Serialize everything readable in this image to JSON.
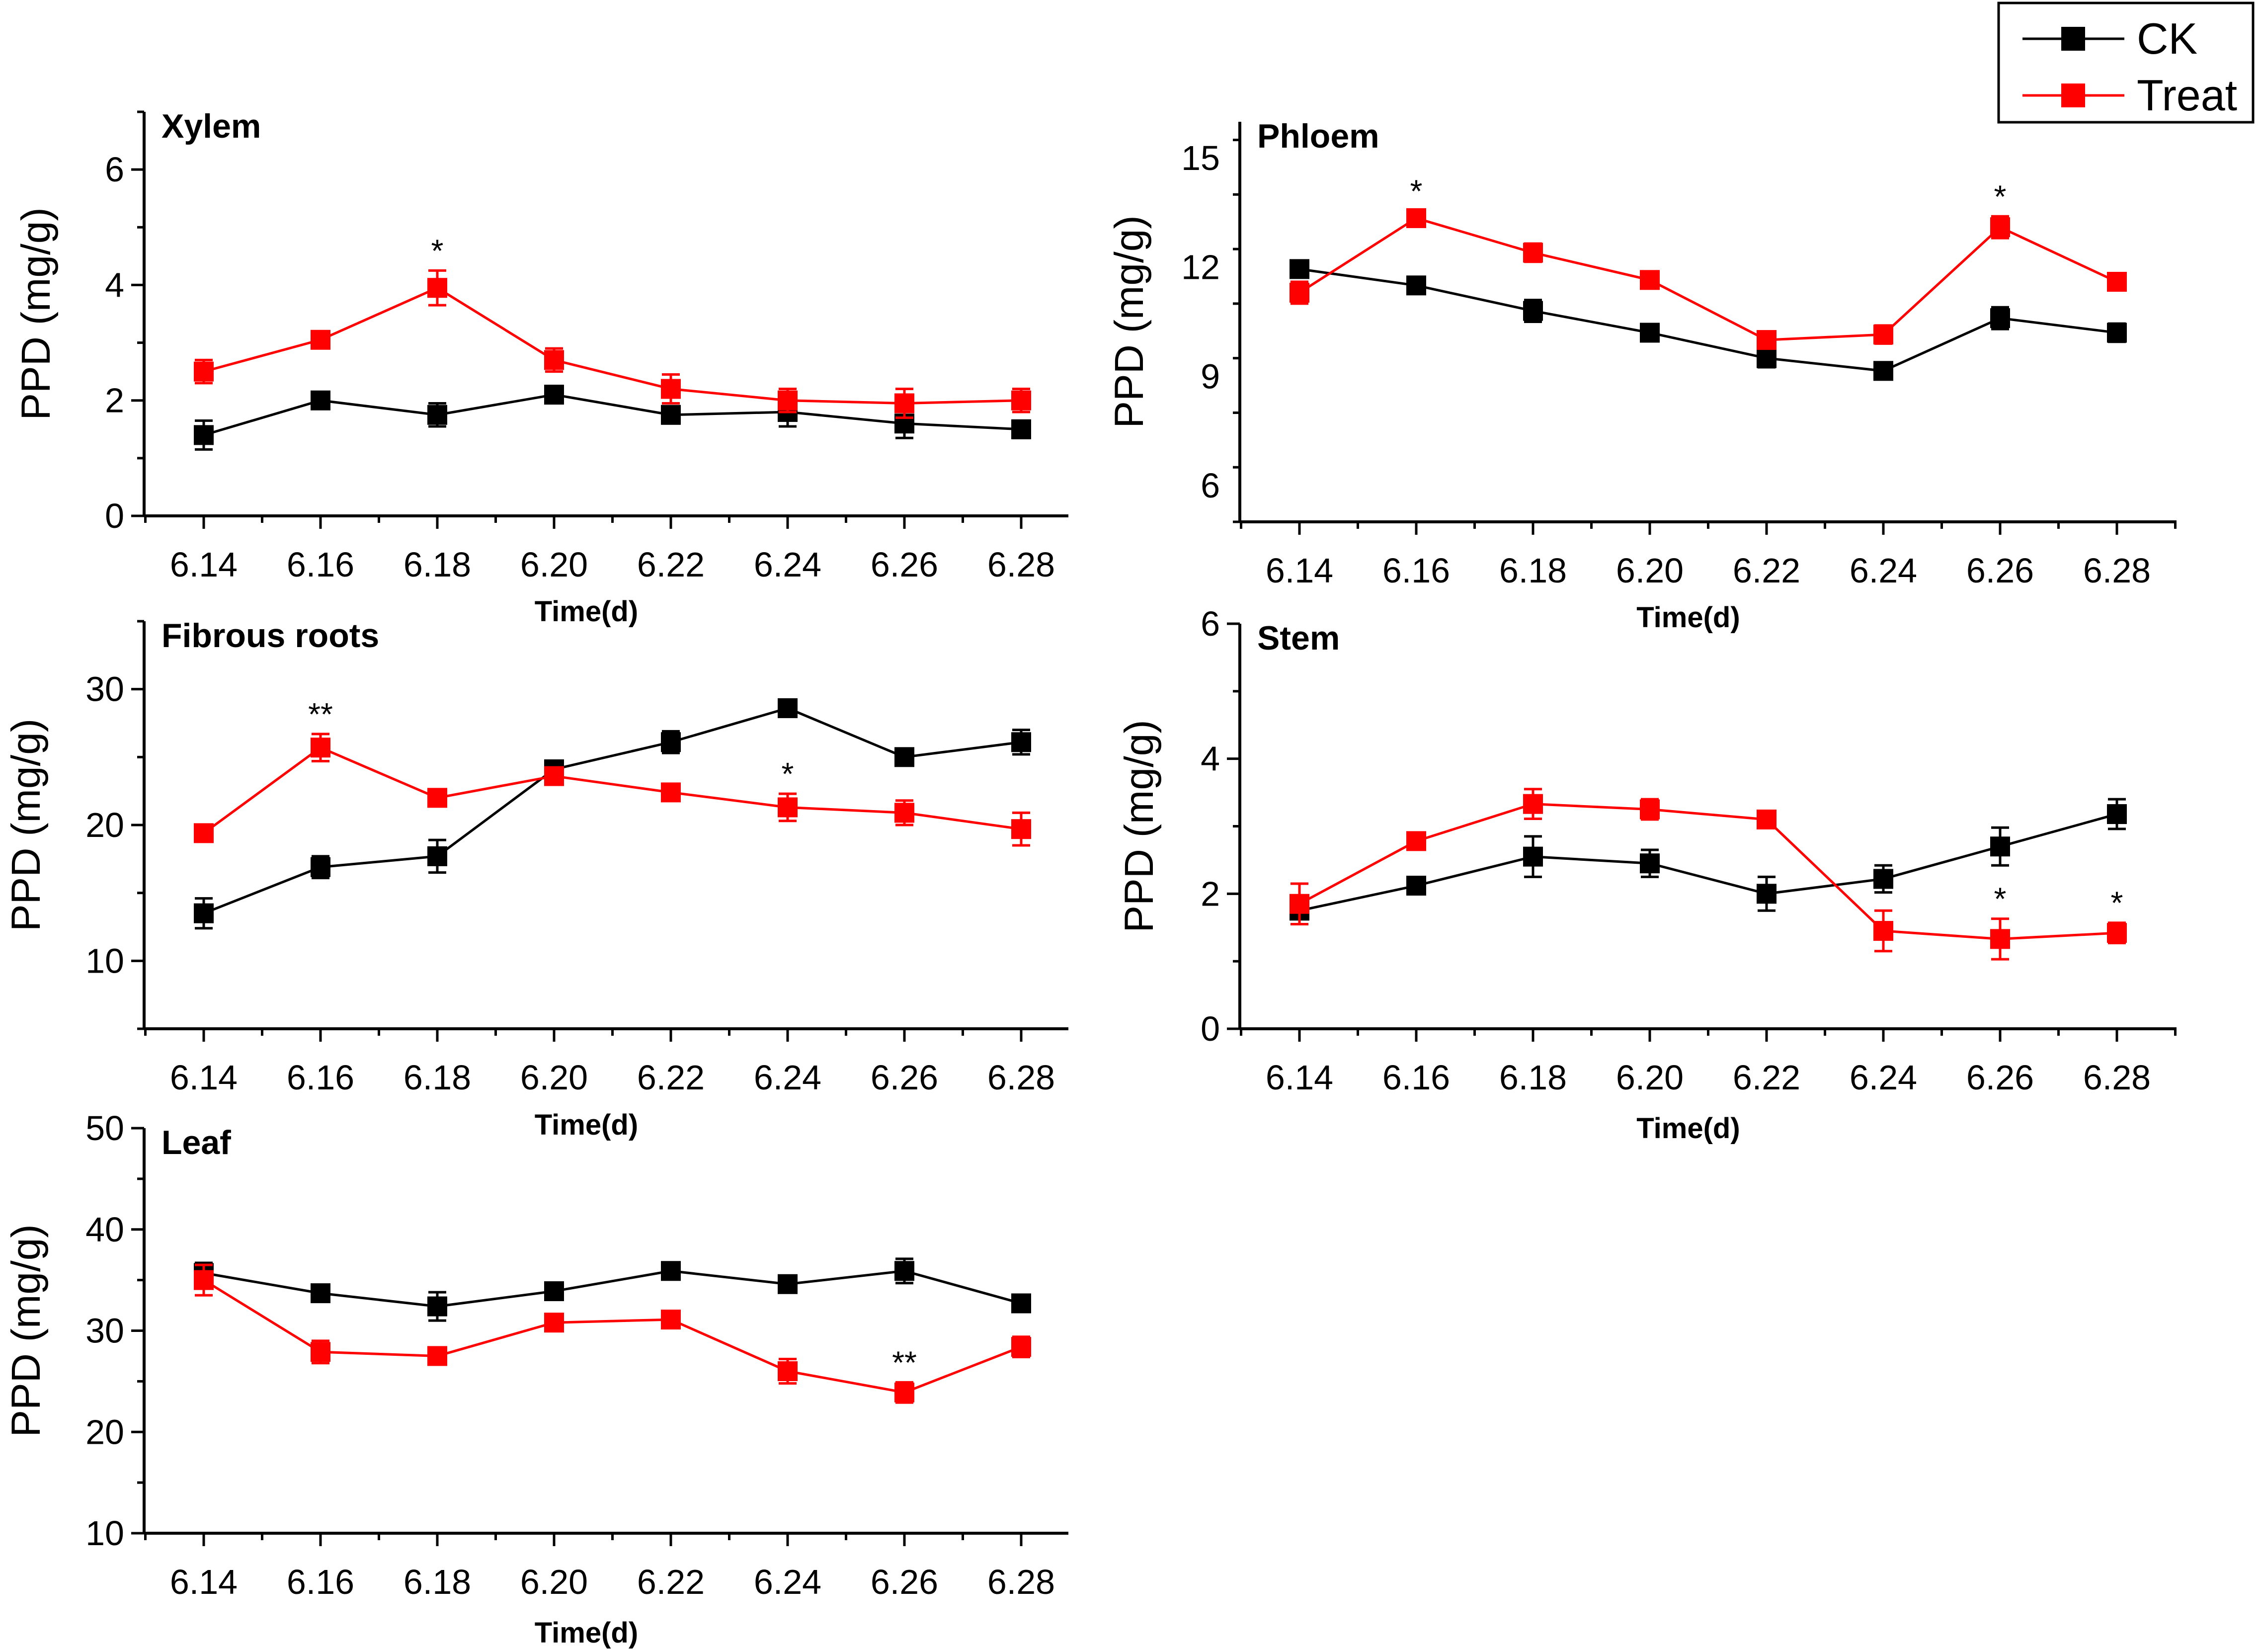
{
  "legend": {
    "entries": [
      {
        "name": "CK",
        "color": "#000000"
      },
      {
        "name": "Treat",
        "color": "#ff0000"
      }
    ]
  },
  "chart_data": [
    {
      "type": "line",
      "title": "Xylem",
      "xlabel": "Time(d)",
      "ylabel": "PPD (mg/g)",
      "categories": [
        "6.14",
        "6.16",
        "6.18",
        "6.20",
        "6.22",
        "6.24",
        "6.26",
        "6.28"
      ],
      "ylim": [
        0,
        7
      ],
      "yticks": [
        0,
        2,
        4,
        6
      ],
      "series": [
        {
          "name": "CK",
          "color": "#000000",
          "values": [
            1.4,
            2.0,
            1.75,
            2.1,
            1.75,
            1.8,
            1.6,
            1.5
          ],
          "errors": [
            0.25,
            0.1,
            0.2,
            0.15,
            0.15,
            0.25,
            0.25,
            0.15
          ]
        },
        {
          "name": "Treat",
          "color": "#ff0000",
          "values": [
            2.5,
            3.05,
            3.95,
            2.7,
            2.2,
            2.0,
            1.95,
            2.0
          ],
          "errors": [
            0.2,
            0.1,
            0.3,
            0.2,
            0.25,
            0.2,
            0.25,
            0.2
          ]
        }
      ],
      "annotations": [
        {
          "category": "6.18",
          "series": "Treat",
          "text": "*"
        }
      ]
    },
    {
      "type": "line",
      "title": "Phloem",
      "xlabel": "Time(d)",
      "ylabel": "PPD (mg/g)",
      "categories": [
        "6.14",
        "6.16",
        "6.18",
        "6.20",
        "6.22",
        "6.24",
        "6.26",
        "6.28"
      ],
      "ylim": [
        5,
        16
      ],
      "yticks": [
        6,
        9,
        12,
        15
      ],
      "series": [
        {
          "name": "CK",
          "color": "#000000",
          "values": [
            11.95,
            11.5,
            10.8,
            10.2,
            9.5,
            9.15,
            10.6,
            10.2
          ],
          "errors": [
            0.2,
            0.15,
            0.3,
            0.2,
            0.25,
            0.2,
            0.3,
            0.25
          ]
        },
        {
          "name": "Treat",
          "color": "#ff0000",
          "values": [
            11.3,
            13.35,
            12.4,
            11.65,
            10.0,
            10.15,
            13.1,
            11.6
          ],
          "errors": [
            0.3,
            0.2,
            0.25,
            0.2,
            0.2,
            0.25,
            0.3,
            0.2
          ]
        }
      ],
      "annotations": [
        {
          "category": "6.16",
          "series": "Treat",
          "text": "*"
        },
        {
          "category": "6.26",
          "series": "Treat",
          "text": "*"
        }
      ]
    },
    {
      "type": "line",
      "title": "Fibrous roots",
      "xlabel": "Time(d)",
      "ylabel": "PPD (mg/g)",
      "categories": [
        "6.14",
        "6.16",
        "6.18",
        "6.20",
        "6.22",
        "6.24",
        "6.26",
        "6.28"
      ],
      "ylim": [
        5,
        35
      ],
      "yticks": [
        10,
        20,
        30
      ],
      "series": [
        {
          "name": "CK",
          "color": "#000000",
          "values": [
            13.5,
            16.9,
            17.7,
            24.1,
            26.1,
            28.6,
            25.0,
            26.1
          ],
          "errors": [
            1.1,
            0.8,
            1.2,
            0.4,
            0.8,
            0.5,
            0.4,
            0.9
          ]
        },
        {
          "name": "Treat",
          "color": "#ff0000",
          "values": [
            19.4,
            25.7,
            22.0,
            23.6,
            22.4,
            21.3,
            20.9,
            19.7
          ],
          "errors": [
            0.6,
            1.0,
            0.4,
            0.5,
            0.4,
            1.0,
            0.9,
            1.2
          ]
        }
      ],
      "annotations": [
        {
          "category": "6.16",
          "series": "Treat",
          "text": "**"
        },
        {
          "category": "6.24",
          "series": "Treat",
          "text": "*"
        }
      ]
    },
    {
      "type": "line",
      "title": "Stem",
      "xlabel": "Time(d)",
      "ylabel": "PPD (mg/g)",
      "categories": [
        "6.14",
        "6.16",
        "6.18",
        "6.20",
        "6.22",
        "6.24",
        "6.26",
        "6.28"
      ],
      "ylim": [
        0,
        6
      ],
      "yticks": [
        0,
        2,
        4,
        6
      ],
      "series": [
        {
          "name": "CK",
          "color": "#000000",
          "values": [
            1.75,
            2.12,
            2.55,
            2.45,
            2.0,
            2.22,
            2.7,
            3.18
          ],
          "errors": [
            0.2,
            0.12,
            0.3,
            0.2,
            0.25,
            0.2,
            0.28,
            0.22
          ]
        },
        {
          "name": "Treat",
          "color": "#ff0000",
          "values": [
            1.85,
            2.78,
            3.33,
            3.25,
            3.1,
            1.45,
            1.33,
            1.42
          ],
          "errors": [
            0.3,
            0.1,
            0.22,
            0.15,
            0.12,
            0.3,
            0.3,
            0.15
          ]
        }
      ],
      "annotations": [
        {
          "category": "6.26",
          "series": "Treat",
          "text": "*"
        },
        {
          "category": "6.28",
          "series": "Treat",
          "text": "*"
        }
      ]
    },
    {
      "type": "line",
      "title": "Leaf",
      "xlabel": "Time(d)",
      "ylabel": "PPD (mg/g)",
      "categories": [
        "6.14",
        "6.16",
        "6.18",
        "6.20",
        "6.22",
        "6.24",
        "6.26",
        "6.28"
      ],
      "ylim": [
        10,
        50
      ],
      "yticks": [
        10,
        20,
        30,
        40,
        50
      ],
      "series": [
        {
          "name": "CK",
          "color": "#000000",
          "values": [
            35.7,
            33.7,
            32.4,
            33.9,
            35.9,
            34.6,
            35.9,
            32.7
          ],
          "errors": [
            1.0,
            0.8,
            1.4,
            0.6,
            0.7,
            0.8,
            1.2,
            0.8
          ]
        },
        {
          "name": "Treat",
          "color": "#ff0000",
          "values": [
            35.0,
            27.9,
            27.5,
            30.8,
            31.1,
            26.0,
            23.9,
            28.4
          ],
          "errors": [
            1.5,
            1.1,
            0.6,
            0.6,
            0.8,
            1.2,
            1.0,
            1.0
          ]
        }
      ],
      "annotations": [
        {
          "category": "6.26",
          "series": "Treat",
          "text": "**"
        }
      ]
    }
  ]
}
